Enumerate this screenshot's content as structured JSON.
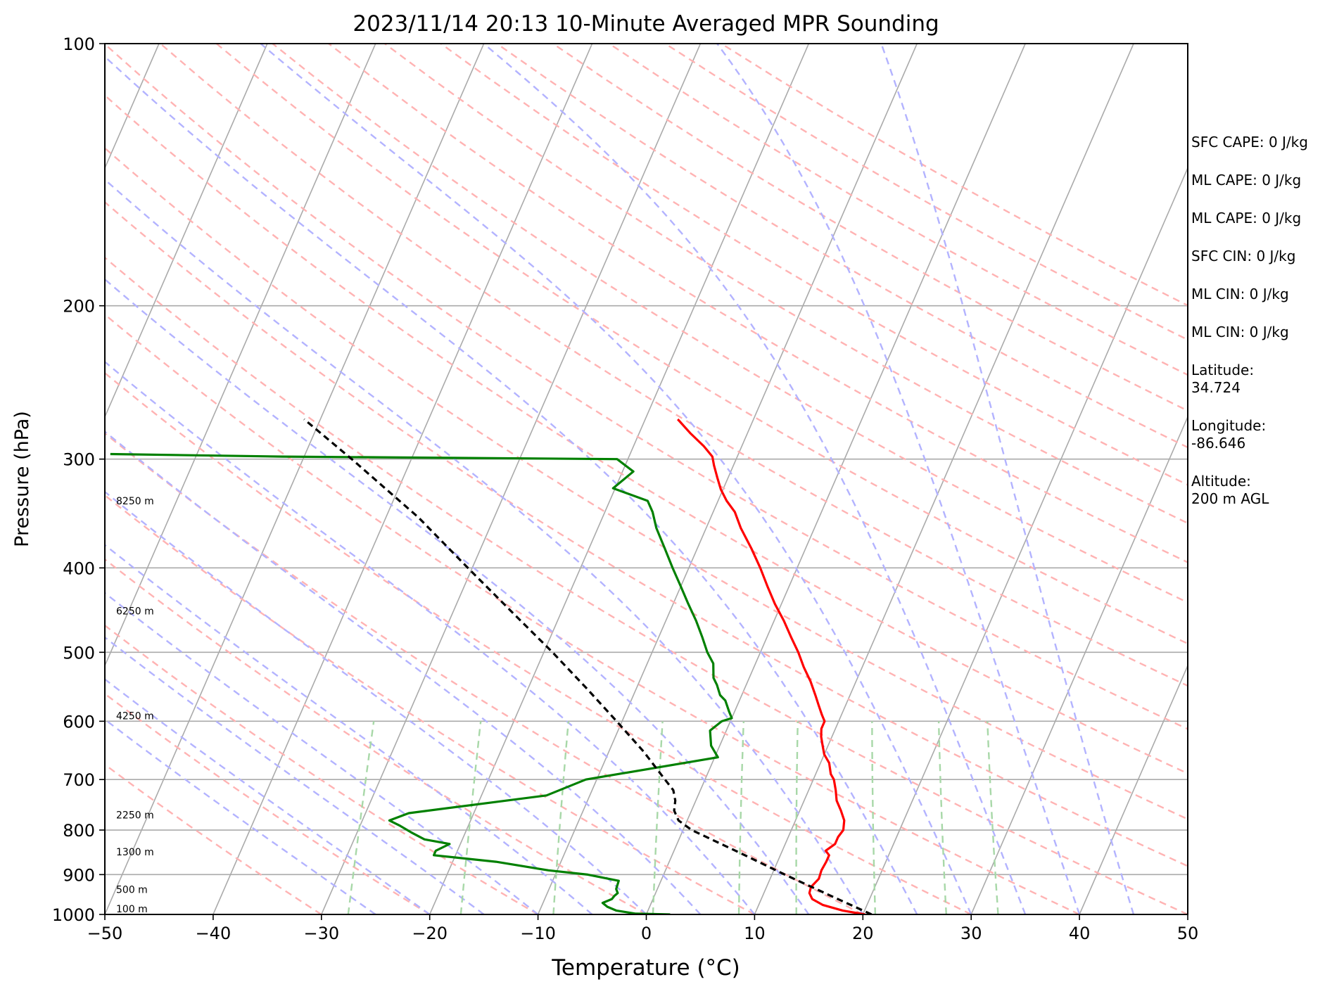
{
  "chart_data": {
    "type": "line",
    "subtype": "skew-T log-p sounding",
    "title": "2023/11/14 20:13 10-Minute Averaged MPR Sounding",
    "xlabel": "Temperature (°C)",
    "ylabel": "Pressure (hPa)",
    "xlim": [
      -50,
      50
    ],
    "ylim": [
      1000,
      100
    ],
    "y_scale": "log",
    "grid": true,
    "x_ticks": [
      -50,
      -40,
      -30,
      -20,
      -10,
      0,
      10,
      20,
      30,
      40,
      50
    ],
    "x_tick_labels": [
      "−50",
      "−40",
      "−30",
      "−20",
      "−10",
      "0",
      "10",
      "20",
      "30",
      "40",
      "50"
    ],
    "y_ticks": [
      1000,
      900,
      800,
      700,
      600,
      500,
      400,
      300,
      200,
      100
    ],
    "y_tick_labels": [
      "1000",
      "900",
      "800",
      "700",
      "600",
      "500",
      "400",
      "300",
      "200",
      "100"
    ],
    "height_labels": [
      {
        "pressure": 1000,
        "label": "100 m"
      },
      {
        "pressure": 950,
        "label": "500 m"
      },
      {
        "pressure": 860,
        "label": "1300 m"
      },
      {
        "pressure": 780,
        "label": "2250 m"
      },
      {
        "pressure": 600,
        "label": "4250 m"
      },
      {
        "pressure": 455,
        "label": "6250 m"
      },
      {
        "pressure": 340,
        "label": "8250 m"
      }
    ],
    "series": [
      {
        "role": "temperature",
        "color": "#ff0000",
        "points": [
          [
            1000,
            20.2
          ],
          [
            990,
            18.0
          ],
          [
            975,
            15.9
          ],
          [
            960,
            14.7
          ],
          [
            945,
            14.2
          ],
          [
            930,
            14.1
          ],
          [
            910,
            14.5
          ],
          [
            890,
            14.4
          ],
          [
            870,
            14.5
          ],
          [
            855,
            14.5
          ],
          [
            845,
            14.0
          ],
          [
            830,
            14.6
          ],
          [
            815,
            14.6
          ],
          [
            800,
            14.8
          ],
          [
            780,
            14.5
          ],
          [
            760,
            13.8
          ],
          [
            740,
            13.0
          ],
          [
            720,
            12.5
          ],
          [
            700,
            11.9
          ],
          [
            690,
            11.4
          ],
          [
            670,
            10.8
          ],
          [
            655,
            10.0
          ],
          [
            640,
            9.5
          ],
          [
            625,
            9.0
          ],
          [
            612,
            8.7
          ],
          [
            600,
            8.7
          ],
          [
            590,
            8.2
          ],
          [
            575,
            7.5
          ],
          [
            560,
            6.8
          ],
          [
            540,
            5.8
          ],
          [
            520,
            4.6
          ],
          [
            500,
            3.5
          ],
          [
            480,
            2.2
          ],
          [
            460,
            0.9
          ],
          [
            440,
            -0.6
          ],
          [
            420,
            -2.0
          ],
          [
            400,
            -3.4
          ],
          [
            380,
            -5.0
          ],
          [
            360,
            -6.8
          ],
          [
            345,
            -8.0
          ],
          [
            335,
            -9.2
          ],
          [
            325,
            -10.2
          ],
          [
            315,
            -11.0
          ],
          [
            305,
            -11.8
          ],
          [
            298,
            -12.3
          ],
          [
            290,
            -13.5
          ],
          [
            280,
            -15.3
          ],
          [
            270,
            -17.0
          ]
        ]
      },
      {
        "role": "dewpoint",
        "color": "#008000",
        "points": [
          [
            1000,
            2.2
          ],
          [
            998,
            -1.0
          ],
          [
            990,
            -2.9
          ],
          [
            980,
            -3.9
          ],
          [
            970,
            -4.5
          ],
          [
            960,
            -3.8
          ],
          [
            952,
            -3.7
          ],
          [
            945,
            -3.5
          ],
          [
            935,
            -3.8
          ],
          [
            915,
            -3.9
          ],
          [
            900,
            -7.0
          ],
          [
            890,
            -10.8
          ],
          [
            870,
            -16.0
          ],
          [
            855,
            -22.0
          ],
          [
            845,
            -22.0
          ],
          [
            830,
            -21.0
          ],
          [
            820,
            -23.5
          ],
          [
            805,
            -25.0
          ],
          [
            790,
            -26.4
          ],
          [
            780,
            -27.5
          ],
          [
            765,
            -26.0
          ],
          [
            730,
            -14.0
          ],
          [
            700,
            -11.0
          ],
          [
            660,
            0.3
          ],
          [
            640,
            -0.8
          ],
          [
            615,
            -1.5
          ],
          [
            600,
            -0.8
          ],
          [
            595,
            0.0
          ],
          [
            585,
            -0.5
          ],
          [
            568,
            -1.3
          ],
          [
            560,
            -2.0
          ],
          [
            545,
            -2.7
          ],
          [
            535,
            -3.3
          ],
          [
            515,
            -3.9
          ],
          [
            500,
            -4.9
          ],
          [
            480,
            -6.0
          ],
          [
            460,
            -7.2
          ],
          [
            440,
            -8.6
          ],
          [
            420,
            -10.0
          ],
          [
            400,
            -11.5
          ],
          [
            380,
            -13.0
          ],
          [
            360,
            -14.6
          ],
          [
            345,
            -15.6
          ],
          [
            335,
            -16.5
          ],
          [
            324,
            -20.2
          ],
          [
            310,
            -19.0
          ],
          [
            300,
            -21.0
          ],
          [
            298,
            -52.0
          ],
          [
            296,
            -68.0
          ]
        ]
      },
      {
        "role": "parcel profile",
        "color": "#000000",
        "dashed": true,
        "points": [
          [
            1000,
            20.8
          ],
          [
            950,
            16.1
          ],
          [
            900,
            11.2
          ],
          [
            850,
            6.2
          ],
          [
            800,
            0.8
          ],
          [
            780,
            -0.8
          ],
          [
            760,
            -1.6
          ],
          [
            740,
            -1.9
          ],
          [
            720,
            -2.5
          ],
          [
            700,
            -3.7
          ],
          [
            650,
            -6.8
          ],
          [
            600,
            -10.5
          ],
          [
            550,
            -14.6
          ],
          [
            500,
            -19.2
          ],
          [
            450,
            -24.5
          ],
          [
            400,
            -30.4
          ],
          [
            350,
            -37.0
          ],
          [
            300,
            -45.5
          ],
          [
            270,
            -51.5
          ]
        ]
      }
    ],
    "reference_lines": {
      "isotherms_color": "#aaaaaa",
      "dry_adiabats_color": "#ffb3b3",
      "moist_adiabats_color": "#b3b3ff",
      "mixing_ratio_color": "#a8d8a8"
    },
    "annotations": [
      {
        "text": "SFC CAPE: 0 J/kg"
      },
      {
        "text": "ML CAPE: 0 J/kg"
      },
      {
        "text": "ML CAPE: 0 J/kg"
      },
      {
        "text": "SFC CIN: 0 J/kg"
      },
      {
        "text": "ML CIN: 0 J/kg"
      },
      {
        "text": "ML CIN: 0 J/kg"
      },
      {
        "text": "Latitude:\n34.724"
      },
      {
        "text": "Longitude:\n-86.646"
      },
      {
        "text": "Altitude:\n200 m AGL"
      }
    ]
  }
}
